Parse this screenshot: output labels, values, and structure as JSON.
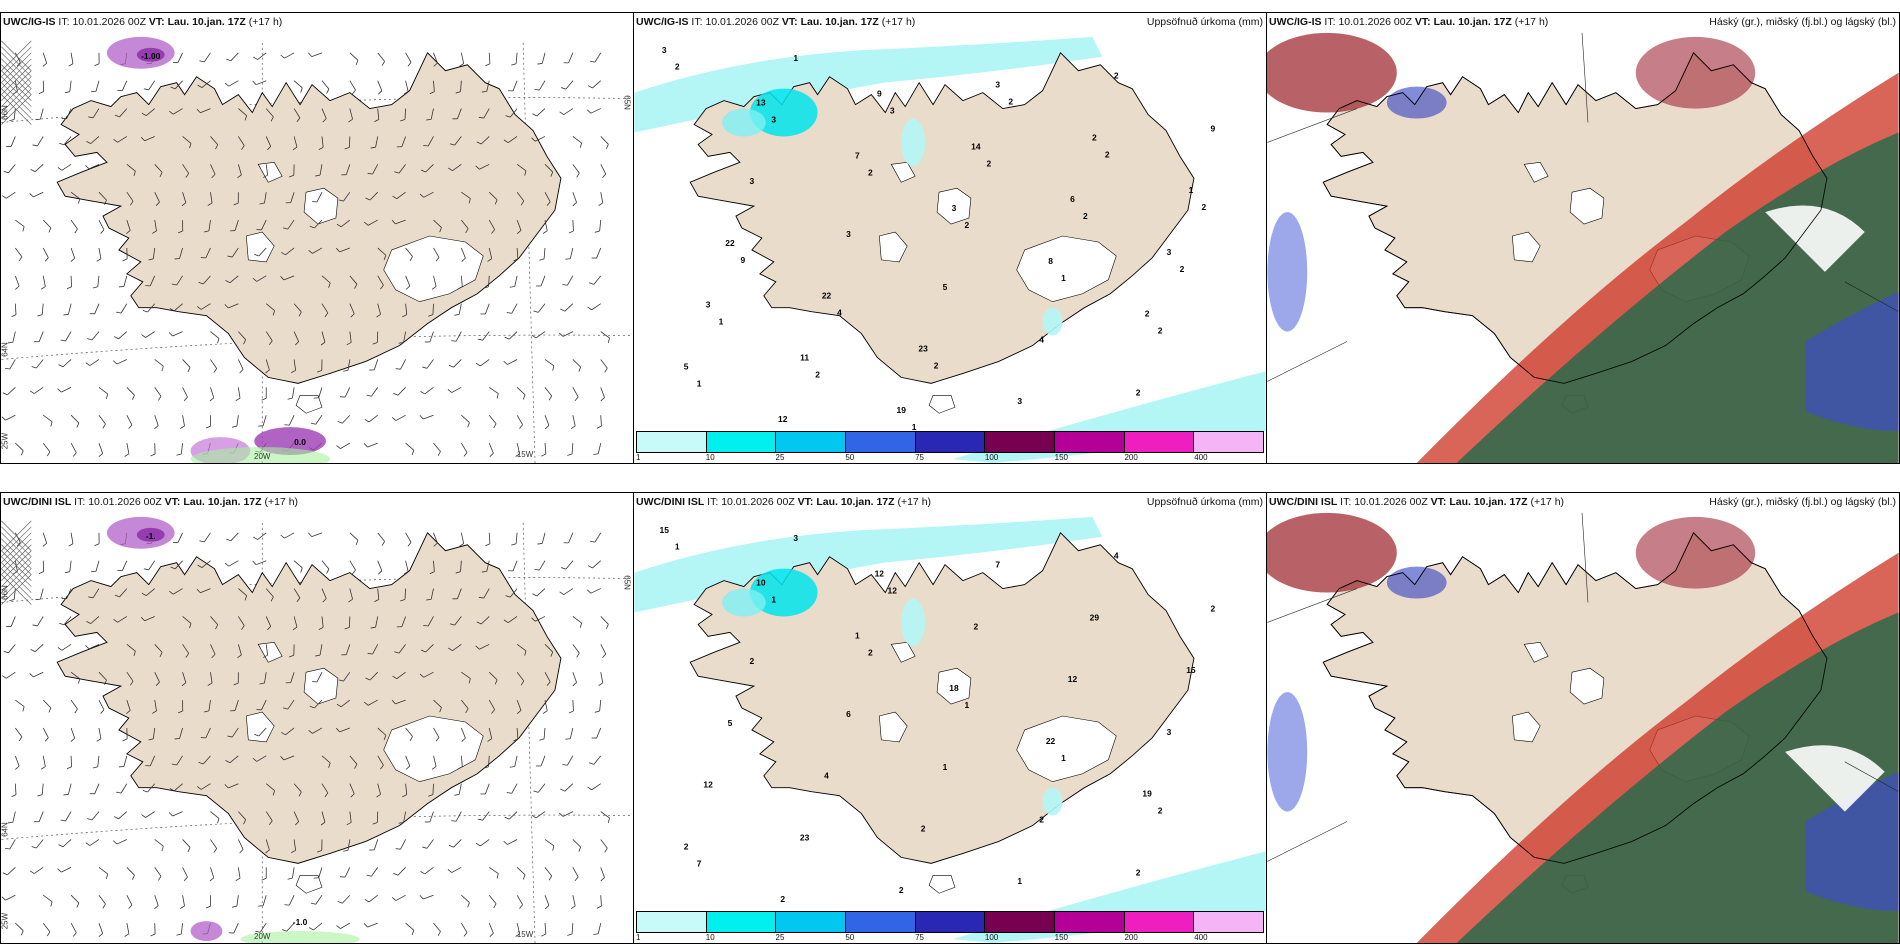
{
  "rows": [
    {
      "wind": {
        "model": "UWC/IG-IS",
        "it_label": "IT:",
        "it": "10.01.2026 00Z",
        "vt_label": "VT:",
        "vt": "Lau. 10.jan. 17Z",
        "lead": "(+17 h)"
      },
      "precip": {
        "model": "UWC/IG-IS",
        "it_label": "IT:",
        "it": "10.01.2026 00Z",
        "vt_label": "VT:",
        "vt": "Lau. 10.jan. 17Z",
        "lead": "(+17 h)",
        "right_title": "Uppsöfnuð úrkoma (mm)"
      },
      "cloud": {
        "model": "UWC/IG-IS",
        "it_label": "IT:",
        "it": "10.01.2026 00Z",
        "vt_label": "VT:",
        "vt": "Lau. 10.jan. 17Z",
        "lead": "(+17 h)",
        "right_title": "Háský (gr.), miðský (fj.bl.) og lágský (bl.)"
      },
      "precip_values": [
        "3",
        "13",
        "7",
        "3",
        "8",
        "2",
        "5",
        "12",
        "9",
        "14",
        "6",
        "3",
        "3",
        "11",
        "19",
        "3",
        "2",
        "1",
        "22",
        "22",
        "23",
        "3",
        "2",
        "9",
        "3",
        "3",
        "5",
        "4",
        "2",
        "2",
        "3",
        "2",
        "2",
        "1",
        "2",
        "1",
        "1",
        "3",
        "2",
        "2",
        "2",
        "1",
        "2",
        "1",
        "2",
        "2",
        "2",
        "9",
        "4",
        "2"
      ]
    },
    {
      "wind": {
        "model": "UWC/DINI ISL",
        "it_label": "IT:",
        "it": "10.01.2026 00Z",
        "vt_label": "VT:",
        "vt": "Lau. 10.jan. 17Z",
        "lead": "(+17 h)"
      },
      "precip": {
        "model": "UWC/DINI ISL",
        "it_label": "IT:",
        "it": "10.01.2026 00Z",
        "vt_label": "VT:",
        "vt": "Lau. 10.jan. 17Z",
        "lead": "(+17 h)",
        "right_title": "Uppsöfnuð úrkoma (mm)"
      },
      "cloud": {
        "model": "UWC/DINI ISL",
        "it_label": "IT:",
        "it": "10.01.2026 00Z",
        "vt_label": "VT:",
        "vt": "Lau. 10.jan. 17Z",
        "lead": "(+17 h)",
        "right_title": "Háský (gr.), miðský (fj.bl.) og lágský (bl.)"
      },
      "precip_values": [
        "15",
        "10",
        "1",
        "18",
        "22",
        "19",
        "2",
        "2",
        "12",
        "2",
        "12",
        "3",
        "12",
        "23",
        "2",
        "7",
        "29",
        "15",
        "5",
        "4",
        "2",
        "1",
        "4",
        "2",
        "2",
        "6",
        "1",
        "2",
        "2",
        "1",
        "1",
        "2",
        "1",
        "1",
        "2",
        "7",
        "3",
        "12"
      ]
    }
  ],
  "colorbar": {
    "ticks": [
      "1",
      "10",
      "25",
      "50",
      "75",
      "100",
      "150",
      "200",
      "400"
    ],
    "colors": [
      "#c8fafa",
      "#00f0f0",
      "#00c8f0",
      "#3264e6",
      "#2828b4",
      "#780050",
      "#b40096",
      "#f01ebe",
      "#f5b4f5"
    ]
  },
  "grid_labels": {
    "top": [
      "66N",
      "65N",
      "64N",
      "25W",
      "20W",
      "15W"
    ],
    "bottom": [
      "66N",
      "65N",
      "64N",
      "25W",
      "20W",
      "15W"
    ]
  },
  "wind_extra_labels": {
    "top": [
      "-1.00",
      "0.0"
    ],
    "bottom": [
      "-1.",
      "-1.0"
    ]
  },
  "colors": {
    "land": "#eadccb",
    "snow": "#ffffff",
    "high_cloud": "#cc3020",
    "low_cloud": "#1e6a4a",
    "mid_cloud": "#4050c0",
    "precip_light": "#b4f6f6"
  }
}
